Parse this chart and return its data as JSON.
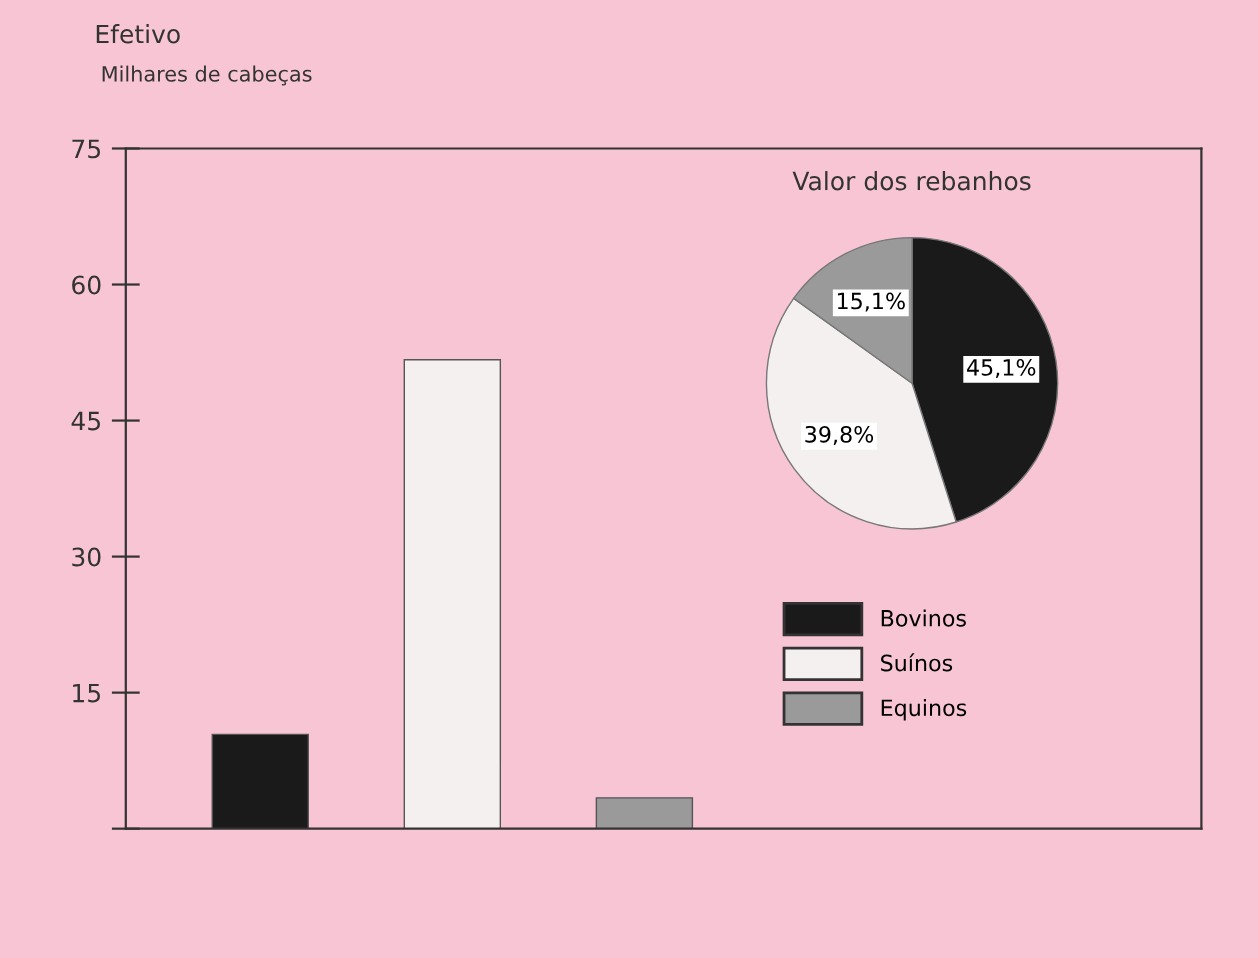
{
  "chart_data": [
    {
      "type": "bar",
      "title": "Efetivo",
      "subtitle": "Milhares de cabeças",
      "categories": [
        null,
        null,
        null
      ],
      "values": [
        10.4,
        51.7,
        3.4
      ],
      "colors": [
        "#1a1a1a",
        "#f4f0f0",
        "#9a9a9a"
      ],
      "ylim": [
        0,
        75
      ],
      "yticks": [
        {
          "value": 0,
          "label": null
        },
        15,
        30,
        45,
        60,
        75
      ],
      "grid": false
    },
    {
      "type": "pie",
      "title": "Valor dos rebanhos",
      "categories": [
        "Bovinos",
        "Suínos",
        "Equinos"
      ],
      "values": [
        45.1,
        39.8,
        15.1
      ],
      "value_labels": [
        "45,1%",
        "39,8%",
        "15,1%"
      ],
      "colors": [
        "#1a1a1a",
        "#f4f0f0",
        "#9a9a9a"
      ],
      "legend": "bottom"
    }
  ]
}
